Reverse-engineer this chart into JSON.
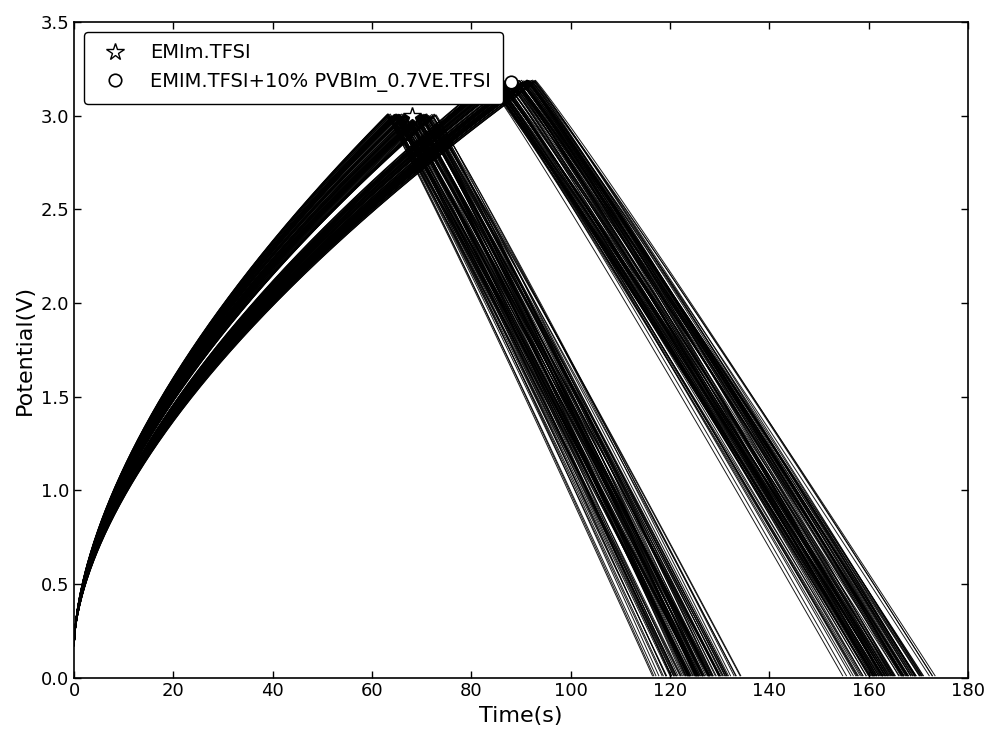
{
  "title": "",
  "xlabel": "Time(s)",
  "ylabel": "Potential(V)",
  "xlim": [
    0,
    180
  ],
  "ylim": [
    0.0,
    3.5
  ],
  "xticks": [
    0,
    20,
    40,
    60,
    80,
    100,
    120,
    140,
    160,
    180
  ],
  "yticks": [
    0.0,
    0.5,
    1.0,
    1.5,
    2.0,
    2.5,
    3.0,
    3.5
  ],
  "series1_label": "EMIm.TFSI",
  "series2_label": "EMIM.TFSI+10% PVBIm_0.7VE.TFSI",
  "background_color": "#ffffff",
  "n_cycles_s1": 120,
  "n_cycles_s2": 120,
  "s1_charge_time_base": 68,
  "s1_charge_time_spread": 5,
  "s1_discharge_time_base": 58,
  "s1_discharge_time_spread": 5,
  "s1_v_min": 0.18,
  "s1_v_max": 3.0,
  "s2_charge_time_base": 88,
  "s2_charge_time_spread": 5,
  "s2_discharge_time_base": 76,
  "s2_discharge_time_spread": 5,
  "s2_v_min": 0.18,
  "s2_v_max": 3.18,
  "figsize": [
    10.0,
    7.41
  ],
  "dpi": 100,
  "legend_fontsize": 14,
  "axis_fontsize": 16,
  "tick_fontsize": 13
}
